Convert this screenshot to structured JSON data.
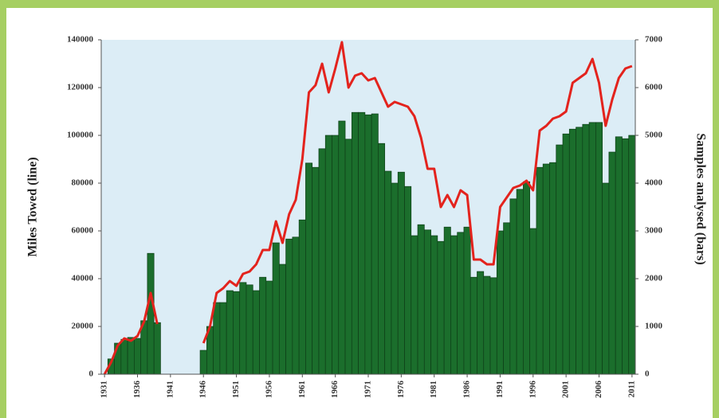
{
  "chart_data": {
    "type": "bar-line",
    "y_label": "Miles Towed (line)",
    "y2_label": "Samples analysed (bars)",
    "x": [
      1931,
      1932,
      1933,
      1934,
      1935,
      1936,
      1937,
      1938,
      1939,
      1940,
      1941,
      1942,
      1943,
      1944,
      1945,
      1946,
      1947,
      1948,
      1949,
      1950,
      1951,
      1952,
      1953,
      1954,
      1955,
      1956,
      1957,
      1958,
      1959,
      1960,
      1961,
      1962,
      1963,
      1964,
      1965,
      1966,
      1967,
      1968,
      1969,
      1970,
      1971,
      1972,
      1973,
      1974,
      1975,
      1976,
      1977,
      1978,
      1979,
      1980,
      1981,
      1982,
      1983,
      1984,
      1985,
      1986,
      1987,
      1988,
      1989,
      1990,
      1991,
      1992,
      1993,
      1994,
      1995,
      1996,
      1997,
      1998,
      1999,
      2000,
      2001,
      2002,
      2003,
      2004,
      2005,
      2006,
      2007,
      2008,
      2009,
      2010,
      2011
    ],
    "series": [
      {
        "type": "bar",
        "axis": "y2",
        "color": "#1b6e2c",
        "values": [
          null,
          320,
          650,
          730,
          770,
          750,
          1120,
          2530,
          1080,
          null,
          null,
          null,
          null,
          null,
          null,
          500,
          1000,
          1500,
          1500,
          1750,
          1730,
          1920,
          1870,
          1750,
          2030,
          1950,
          2750,
          2300,
          2830,
          2870,
          3230,
          4420,
          4330,
          4720,
          5000,
          5000,
          5300,
          4920,
          5480,
          5480,
          5430,
          5450,
          4830,
          4250,
          4000,
          4230,
          3930,
          2900,
          3130,
          3020,
          2900,
          2780,
          3080,
          2900,
          2970,
          3080,
          2030,
          2150,
          2050,
          2020,
          3000,
          3170,
          3670,
          3870,
          4030,
          3050,
          4330,
          4400,
          4430,
          4800,
          5030,
          5130,
          5170,
          5230,
          5270,
          5270,
          4000,
          4650,
          4970,
          4930,
          5000
        ]
      },
      {
        "type": "line",
        "axis": "y",
        "color": "#e3231d",
        "values": [
          0,
          5000,
          12000,
          15000,
          14000,
          16000,
          22000,
          34000,
          21000,
          null,
          null,
          null,
          null,
          null,
          null,
          13000,
          20000,
          34000,
          36000,
          39000,
          37000,
          42000,
          43000,
          46000,
          52000,
          52000,
          64000,
          55000,
          67000,
          73000,
          90000,
          118000,
          121000,
          130000,
          118000,
          128000,
          139000,
          120000,
          125000,
          126000,
          123000,
          124000,
          118000,
          112000,
          114000,
          113000,
          112000,
          108000,
          99000,
          86000,
          86000,
          70000,
          75000,
          70000,
          77000,
          75000,
          48000,
          48000,
          46000,
          46000,
          70000,
          74000,
          78000,
          79000,
          81000,
          77000,
          102000,
          104000,
          107000,
          108000,
          110000,
          122000,
          124000,
          126000,
          132000,
          122000,
          104000,
          115000,
          124000,
          128000,
          129000
        ]
      }
    ],
    "xlim": [
      1930.5,
      2011.5
    ],
    "xticks": [
      1931,
      1936,
      1941,
      1946,
      1951,
      1956,
      1961,
      1966,
      1971,
      1976,
      1981,
      1986,
      1991,
      1996,
      2001,
      2006,
      2011
    ],
    "ylim": [
      0,
      140000
    ],
    "yticks": [
      0,
      20000,
      40000,
      60000,
      80000,
      100000,
      120000,
      140000
    ],
    "y2lim": [
      0,
      7000
    ],
    "y2ticks": [
      0,
      1000,
      2000,
      3000,
      4000,
      5000,
      6000,
      7000
    ],
    "plot_background": "#dcedf6"
  }
}
